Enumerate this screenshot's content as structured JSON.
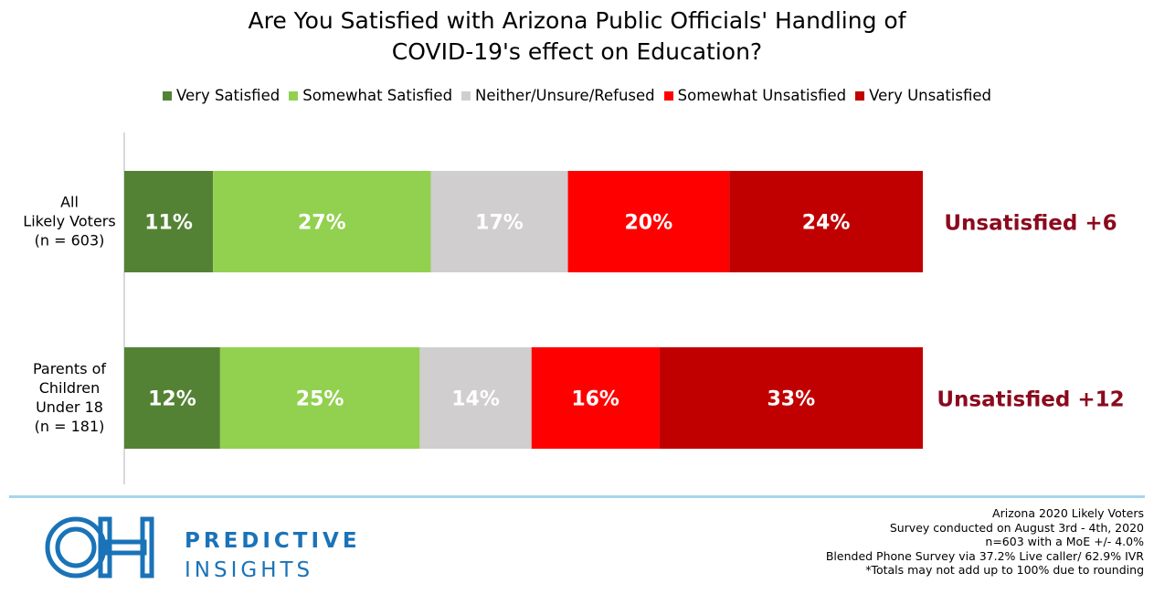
{
  "chart_data": {
    "type": "bar",
    "orientation": "horizontal",
    "stacked": true,
    "title_lines": [
      "Are You Satisfied with Arizona Public Officials' Handling of",
      "COVID-19's effect on Education?"
    ],
    "categories": [
      [
        "All",
        "Likely Voters",
        "(n = 603)"
      ],
      [
        "Parents of",
        "Children",
        "Under 18",
        "(n = 181)"
      ]
    ],
    "series": [
      {
        "name": "Very Satisfied",
        "color": "#548235",
        "label_color": "#ffffff",
        "values": [
          11,
          12
        ]
      },
      {
        "name": "Somewhat Satisfied",
        "color": "#92d050",
        "label_color": "#ffffff",
        "values": [
          27,
          25
        ]
      },
      {
        "name": "Neither/Unsure/Refused",
        "color": "#d0cece",
        "label_color": "#ffffff",
        "values": [
          17,
          14
        ]
      },
      {
        "name": "Somewhat Unsatisfied",
        "color": "#ff0000",
        "label_color": "#ffffff",
        "values": [
          20,
          16
        ]
      },
      {
        "name": "Very Unsatisfied",
        "color": "#c00000",
        "label_color": "#ffffff",
        "values": [
          24,
          33
        ]
      }
    ],
    "data_label_suffix": "%",
    "net_labels": [
      "Unsatisfied +6",
      "Unsatisfied +12"
    ],
    "net_label_color": "#8b0a1e",
    "legend_position": "top",
    "grid": false
  },
  "footer": {
    "logo_text_lines": [
      "PREDICTIVE",
      "INSIGHTS"
    ],
    "brand_color": "#1a73b8",
    "notes": [
      "Arizona 2020 Likely Voters",
      "Survey conducted on August 3rd - 4th, 2020",
      "n=603 with a MoE +/- 4.0%",
      "Blended Phone Survey via 37.2% Live caller/ 62.9% IVR",
      "*Totals may not add up to 100% due to rounding"
    ]
  }
}
